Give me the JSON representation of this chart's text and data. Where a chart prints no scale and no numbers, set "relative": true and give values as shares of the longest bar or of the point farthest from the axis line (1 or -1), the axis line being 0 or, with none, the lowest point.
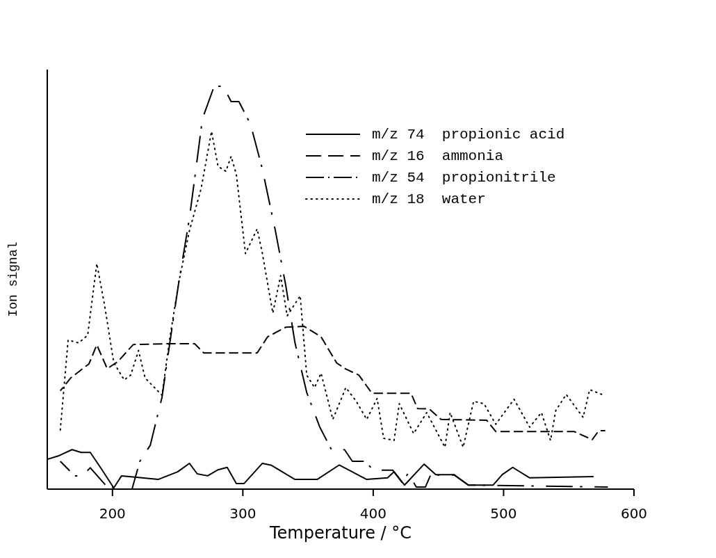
{
  "chart_data": {
    "type": "line",
    "xlabel": "Temperature / °C",
    "ylabel": "Ion signal",
    "relative": true,
    "xlim": [
      150,
      600
    ],
    "xticks": [
      200,
      300,
      400,
      500,
      600
    ],
    "legend": "top right",
    "grid": false,
    "marker": "none",
    "series": [
      {
        "name": "m/z 74  propionic acid",
        "color": "#000000",
        "line_style": "solid",
        "x": [
          150,
          159,
          169,
          176,
          183,
          192,
          201,
          207,
          220,
          235,
          250,
          259,
          265,
          273,
          281,
          288,
          295,
          301,
          315,
          322,
          340,
          357,
          374,
          395,
          411,
          416,
          424,
          439,
          448,
          462,
          473,
          492,
          499,
          507,
          520,
          569
        ],
        "values": [
          0.074,
          0.083,
          0.098,
          0.091,
          0.091,
          0.048,
          0.003,
          0.033,
          0.029,
          0.024,
          0.043,
          0.064,
          0.038,
          0.033,
          0.048,
          0.054,
          0.014,
          0.014,
          0.064,
          0.059,
          0.024,
          0.024,
          0.06,
          0.024,
          0.028,
          0.043,
          0.01,
          0.062,
          0.036,
          0.036,
          0.01,
          0.01,
          0.036,
          0.054,
          0.028,
          0.031
        ]
      },
      {
        "name": "m/z 16  ammonia",
        "color": "#000000",
        "line_style": "dashed",
        "x": [
          160,
          168,
          182,
          188,
          196,
          204,
          216,
          244,
          263,
          270,
          311,
          319,
          333,
          347,
          360,
          372,
          379,
          389,
          399,
          429,
          434,
          443,
          452,
          487,
          494,
          554,
          568,
          573,
          578
        ],
        "values": [
          0.244,
          0.276,
          0.311,
          0.358,
          0.299,
          0.316,
          0.359,
          0.361,
          0.361,
          0.338,
          0.338,
          0.378,
          0.402,
          0.404,
          0.378,
          0.313,
          0.298,
          0.283,
          0.238,
          0.238,
          0.2,
          0.199,
          0.173,
          0.171,
          0.143,
          0.143,
          0.123,
          0.145,
          0.145
        ]
      },
      {
        "name": "m/z 54  propionitrile",
        "color": "#000000",
        "line_style": "dashdot",
        "x": [
          160,
          171,
          177,
          183,
          195,
          205,
          215,
          221,
          229,
          238,
          244,
          251,
          259,
          264,
          269,
          278,
          285,
          291,
          297,
          306,
          315,
          325,
          333,
          340,
          349,
          359,
          368,
          378,
          384,
          394,
          400,
          415,
          422,
          427,
          433,
          440,
          444,
          462,
          473,
          580
        ],
        "values": [
          0.069,
          0.033,
          0.033,
          0.053,
          0.009,
          0,
          0,
          0.069,
          0.109,
          0.228,
          0.363,
          0.516,
          0.672,
          0.794,
          0.919,
          1,
          1,
          0.962,
          0.962,
          0.905,
          0.794,
          0.641,
          0.504,
          0.363,
          0.24,
          0.154,
          0.098,
          0.098,
          0.069,
          0.069,
          0.047,
          0.047,
          0.017,
          0.04,
          0.005,
          0.005,
          0.035,
          0.035,
          0.01,
          0.005
        ]
      },
      {
        "name": "m/z 18  water",
        "color": "#000000",
        "line_style": "dotted",
        "x": [
          160,
          166,
          174,
          181,
          188,
          194,
          201,
          209,
          214,
          220,
          225,
          238,
          244,
          251,
          259,
          268,
          276,
          281,
          287,
          291,
          295,
          302,
          311,
          315,
          323,
          329,
          334,
          344,
          349,
          355,
          360,
          369,
          379,
          387,
          395,
          403,
          408,
          416,
          420,
          431,
          441,
          455,
          459,
          469,
          477,
          485,
          494,
          508,
          520,
          529,
          536,
          540,
          548,
          561,
          566,
          577
        ],
        "values": [
          0.147,
          0.37,
          0.363,
          0.382,
          0.56,
          0.456,
          0.314,
          0.271,
          0.283,
          0.344,
          0.276,
          0.233,
          0.375,
          0.516,
          0.641,
          0.746,
          0.888,
          0.801,
          0.789,
          0.826,
          0.782,
          0.585,
          0.646,
          0.585,
          0.437,
          0.53,
          0.43,
          0.48,
          0.283,
          0.252,
          0.288,
          0.173,
          0.252,
          0.218,
          0.173,
          0.225,
          0.126,
          0.121,
          0.212,
          0.138,
          0.19,
          0.104,
          0.19,
          0.104,
          0.218,
          0.212,
          0.161,
          0.223,
          0.154,
          0.19,
          0.121,
          0.195,
          0.235,
          0.178,
          0.247,
          0.233
        ]
      }
    ]
  }
}
